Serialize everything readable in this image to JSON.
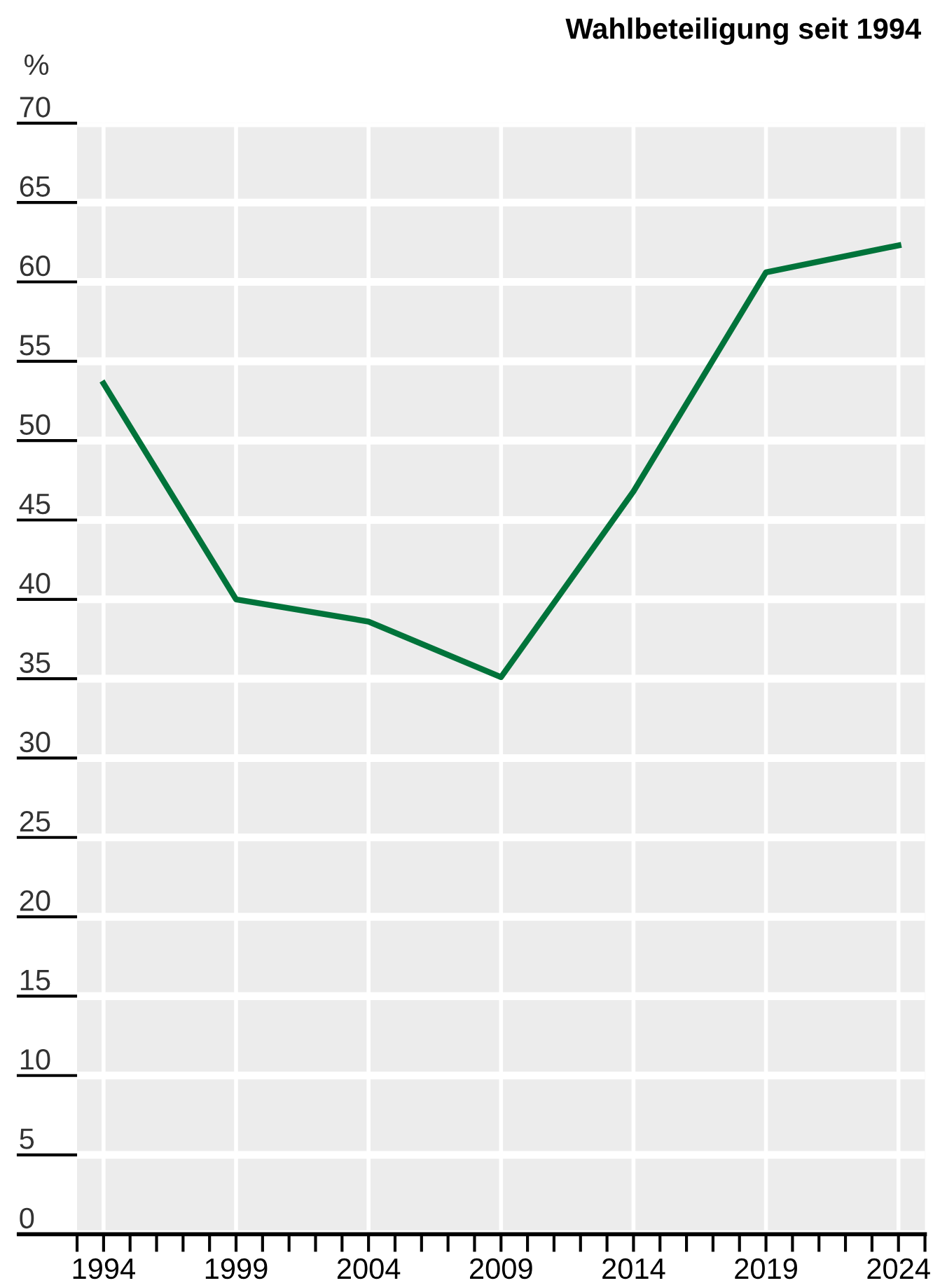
{
  "chart_data": {
    "type": "line",
    "title": "Wahlbeteiligung seit 1994",
    "ylabel": "%",
    "x": [
      1994,
      1999,
      2004,
      2009,
      2014,
      2019,
      2024
    ],
    "series": [
      {
        "color": "#00733a",
        "values": [
          53.6,
          40.0,
          38.6,
          35.1,
          46.8,
          60.6,
          62.3
        ]
      }
    ],
    "xlim": [
      1993,
      2025
    ],
    "xticks": [
      {
        "value": 1993,
        "label": null
      },
      1994,
      {
        "value": 1995,
        "label": null
      },
      {
        "value": 1996,
        "label": null
      },
      {
        "value": 1997,
        "label": null
      },
      {
        "value": 1998,
        "label": null
      },
      1999,
      {
        "value": 2000,
        "label": null
      },
      {
        "value": 2001,
        "label": null
      },
      {
        "value": 2002,
        "label": null
      },
      {
        "value": 2003,
        "label": null
      },
      2004,
      {
        "value": 2005,
        "label": null
      },
      {
        "value": 2006,
        "label": null
      },
      {
        "value": 2007,
        "label": null
      },
      {
        "value": 2008,
        "label": null
      },
      2009,
      {
        "value": 2010,
        "label": null
      },
      {
        "value": 2011,
        "label": null
      },
      {
        "value": 2012,
        "label": null
      },
      {
        "value": 2013,
        "label": null
      },
      2014,
      {
        "value": 2015,
        "label": null
      },
      {
        "value": 2016,
        "label": null
      },
      {
        "value": 2017,
        "label": null
      },
      {
        "value": 2018,
        "label": null
      },
      2019,
      {
        "value": 2020,
        "label": null
      },
      {
        "value": 2021,
        "label": null
      },
      {
        "value": 2022,
        "label": null
      },
      {
        "value": 2023,
        "label": null
      },
      2024,
      {
        "value": 2025,
        "label": null
      }
    ],
    "ylim": [
      0,
      70
    ],
    "yticks": [
      0,
      5,
      10,
      15,
      20,
      25,
      30,
      35,
      40,
      45,
      50,
      55,
      60,
      65,
      70
    ],
    "grid": true,
    "legend": false,
    "marker": "none",
    "line_style": "solid"
  }
}
